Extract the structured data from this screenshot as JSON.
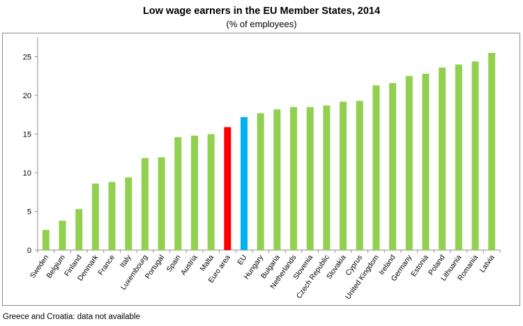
{
  "chart_data": {
    "type": "bar",
    "title": "Low wage earners in the EU Member States, 2014",
    "subtitle": "(% of employees)",
    "xlabel": "",
    "ylabel": "",
    "ylim": [
      0,
      27.5
    ],
    "yticks": [
      0,
      5,
      10,
      15,
      20,
      25
    ],
    "grid": false,
    "categories": [
      "Sweden",
      "Belgium",
      "Finland",
      "Denmark",
      "France",
      "Italy",
      "Luxembourg",
      "Portugal",
      "Spain",
      "Austria",
      "Malta",
      "Euro area",
      "EU",
      "Hungary",
      "Bulgaria",
      "Netherlands",
      "Slovenia",
      "Czech Republic",
      "Slovakia",
      "Cyprus",
      "United Kingdom",
      "Ireland",
      "Germany",
      "Estonia",
      "Poland",
      "Lithuania",
      "Romania",
      "Latvia"
    ],
    "values": [
      2.6,
      3.8,
      5.3,
      8.6,
      8.8,
      9.4,
      11.9,
      12.0,
      14.6,
      14.8,
      15.0,
      15.9,
      17.2,
      17.7,
      18.2,
      18.5,
      18.5,
      18.7,
      19.2,
      19.3,
      21.3,
      21.6,
      22.5,
      22.8,
      23.6,
      24.0,
      24.4,
      25.5
    ],
    "bar_colors": {
      "default": "#92d050",
      "Euro area": "#ff0000",
      "EU": "#00b0f0"
    }
  },
  "footnote": "Greece and Croatia: data not available"
}
